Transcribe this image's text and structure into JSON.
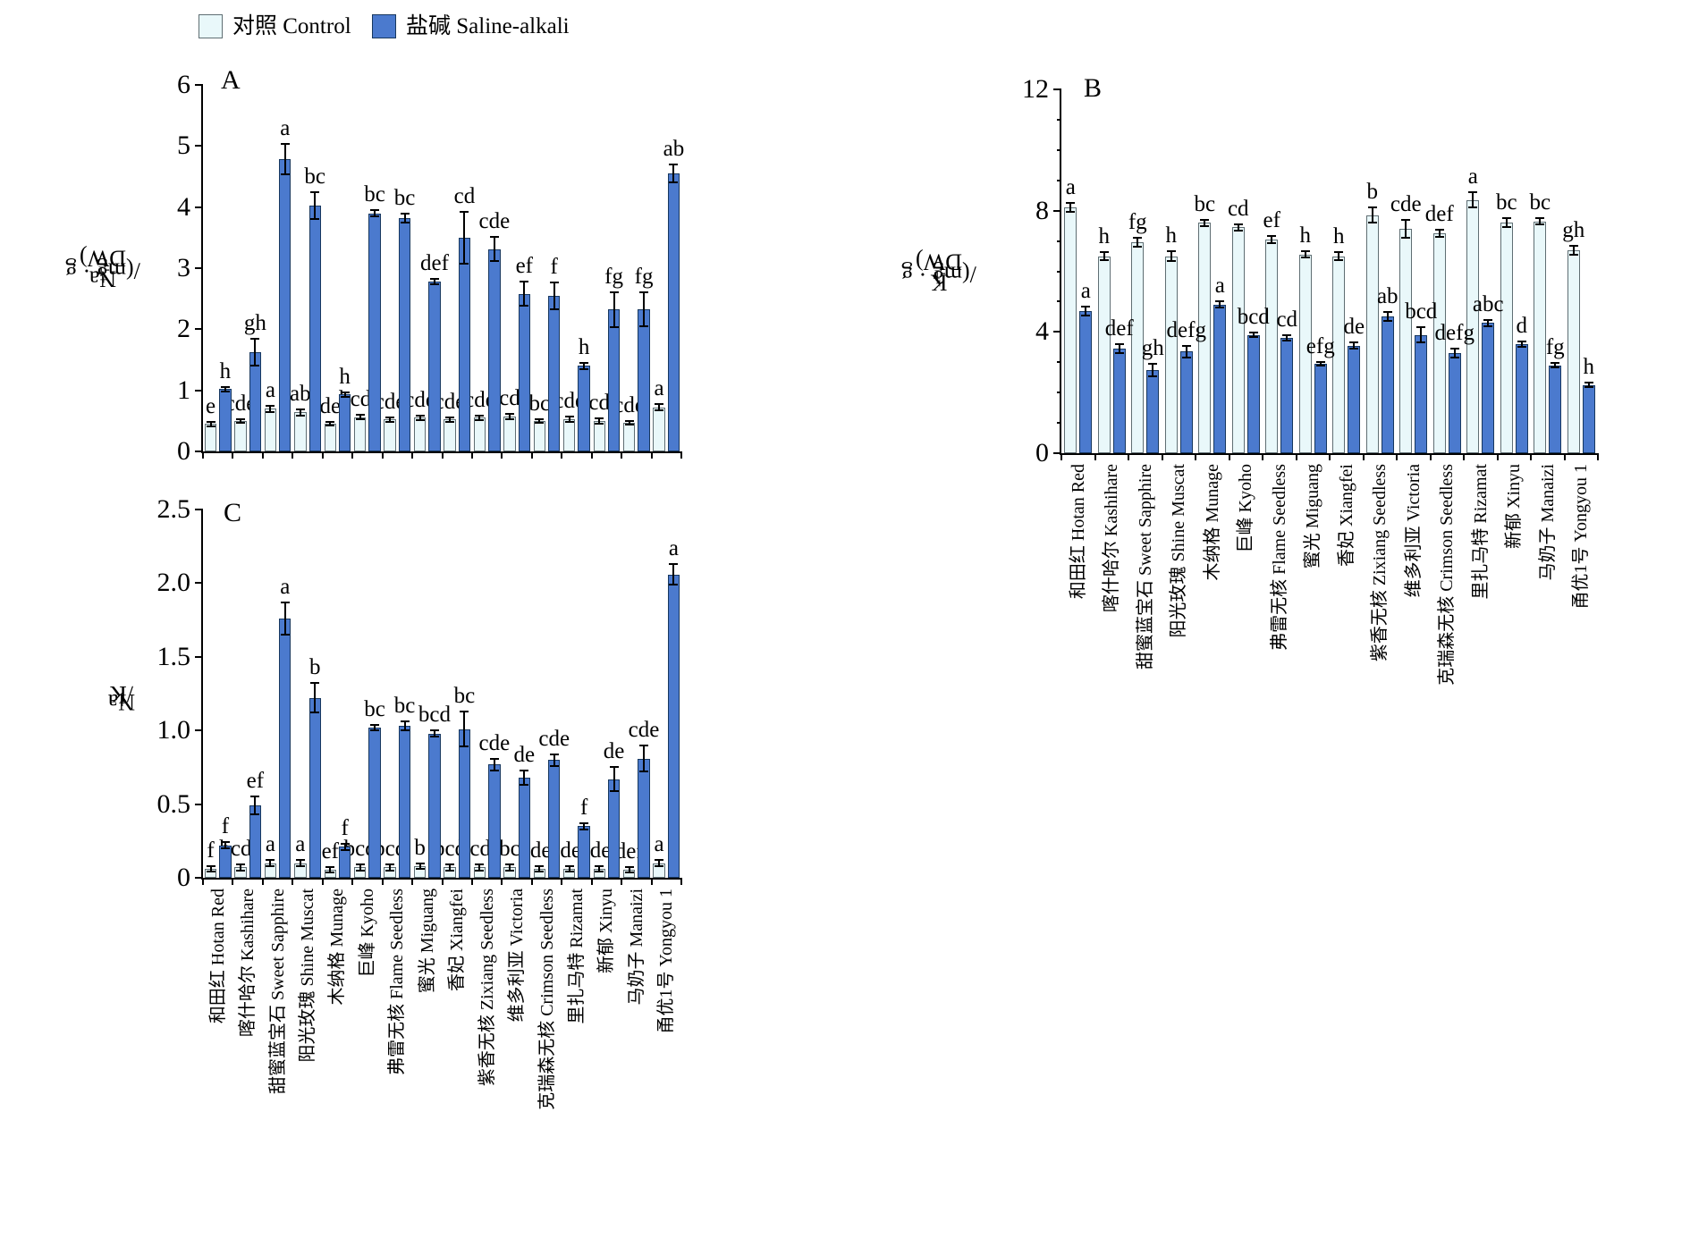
{
  "legend": {
    "control_label": "对照 Control",
    "saline_label": "盐碱 Saline-alkali"
  },
  "colors": {
    "control_fill": "#e9f8fa",
    "control_border": "#5f6e73",
    "saline_fill": "#4b7ace",
    "saline_border": "#17375e",
    "axis": "#000000"
  },
  "categories": [
    "和田红 Hotan Red",
    "喀什哈尔 Kashihare",
    "甜蜜蓝宝石 Sweet Sapphire",
    "阳光玫瑰 Shine Muscat",
    "木纳格 Munage",
    "巨峰 Kyoho",
    "弗雷无核 Flame Seedless",
    "蜜光 Miguang",
    "香妃 Xiangfei",
    "紫香无核 Zixiang Seedless",
    "维多利亚 Victoria",
    "克瑞森无核 Crimson Seedless",
    "里扎马特 Rizamat",
    "新郁 Xinyu",
    "马奶子 Manaizi",
    "甬优1号 Yongyou 1"
  ],
  "chart_data": [
    {
      "id": "A",
      "type": "bar",
      "panel_letter": "A",
      "ylabel_parts": [
        [
          "t",
          "Na"
        ],
        [
          "sup",
          "+"
        ],
        [
          "t",
          "/(mg · g"
        ],
        [
          "sup",
          "-1"
        ],
        [
          "t",
          " DW)"
        ]
      ],
      "ylim": [
        0,
        6
      ],
      "yticks": [
        0,
        1,
        2,
        3,
        4,
        5,
        6
      ],
      "ytick_labels": [
        "0",
        "1",
        "2",
        "3",
        "4",
        "5",
        "6"
      ],
      "minor_step": null,
      "show_xlabels": false,
      "legend_position": "top-left-above-figure",
      "grid": false,
      "series": [
        {
          "name": "control",
          "values": [
            0.45,
            0.5,
            0.7,
            0.64,
            0.45,
            0.56,
            0.52,
            0.55,
            0.52,
            0.55,
            0.57,
            0.5,
            0.53,
            0.5,
            0.47,
            0.72
          ],
          "errors": [
            0.04,
            0.03,
            0.05,
            0.05,
            0.03,
            0.04,
            0.04,
            0.04,
            0.04,
            0.04,
            0.05,
            0.03,
            0.04,
            0.04,
            0.03,
            0.05
          ],
          "letters": [
            "e",
            "cde",
            "a",
            "ab",
            "de",
            "bcde",
            "cde",
            "cde",
            "cde",
            "cde",
            "cd",
            "bc",
            "cde",
            "cd",
            "cde",
            "a"
          ]
        },
        {
          "name": "saline",
          "values": [
            1.02,
            1.63,
            4.78,
            4.02,
            0.93,
            3.9,
            3.82,
            2.78,
            3.5,
            3.31,
            2.58,
            2.54,
            1.4,
            2.32,
            2.33,
            4.55
          ],
          "errors": [
            0.04,
            0.22,
            0.25,
            0.22,
            0.04,
            0.05,
            0.07,
            0.05,
            0.42,
            0.2,
            0.2,
            0.22,
            0.05,
            0.28,
            0.28,
            0.15
          ],
          "letters": [
            "h",
            "gh",
            "a",
            "bc",
            "h",
            "bc",
            "bc",
            "def",
            "cd",
            "cde",
            "ef",
            "f",
            "h",
            "fg",
            "fg",
            "ab"
          ]
        }
      ]
    },
    {
      "id": "B",
      "type": "bar",
      "panel_letter": "B",
      "ylabel_parts": [
        [
          "t",
          "K"
        ],
        [
          "sup",
          "+"
        ],
        [
          "t",
          "/(mg · g"
        ],
        [
          "sup",
          "-1"
        ],
        [
          "t",
          " DW)"
        ]
      ],
      "ylim": [
        0,
        12
      ],
      "yticks": [
        0,
        4,
        8,
        12
      ],
      "ytick_labels": [
        "0",
        "4",
        "8",
        "12"
      ],
      "minor_step": 1,
      "show_xlabels": true,
      "grid": false,
      "series": [
        {
          "name": "control",
          "values": [
            8.1,
            6.5,
            6.95,
            6.5,
            7.6,
            7.45,
            7.05,
            6.55,
            6.5,
            7.85,
            7.4,
            7.25,
            8.35,
            7.6,
            7.65,
            6.7
          ],
          "errors": [
            0.15,
            0.12,
            0.15,
            0.15,
            0.1,
            0.1,
            0.12,
            0.1,
            0.12,
            0.25,
            0.3,
            0.12,
            0.25,
            0.15,
            0.1,
            0.15
          ],
          "letters": [
            "a",
            "h",
            "fg",
            "h",
            "bc",
            "cd",
            "ef",
            "h",
            "h",
            "b",
            "cde",
            "def",
            "a",
            "bc",
            "bc",
            "gh"
          ]
        },
        {
          "name": "saline",
          "values": [
            4.7,
            3.45,
            2.75,
            3.35,
            4.9,
            3.9,
            3.8,
            2.95,
            3.55,
            4.5,
            3.9,
            3.3,
            4.3,
            3.6,
            2.9,
            2.25
          ],
          "errors": [
            0.15,
            0.15,
            0.2,
            0.2,
            0.1,
            0.08,
            0.08,
            0.06,
            0.1,
            0.15,
            0.25,
            0.15,
            0.1,
            0.1,
            0.08,
            0.08
          ],
          "letters": [
            "a",
            "def",
            "gh",
            "defg",
            "a",
            "bcd",
            "cd",
            "efg",
            "de",
            "ab",
            "bcd",
            "defg",
            "abc",
            "d",
            "fg",
            "h"
          ]
        }
      ]
    },
    {
      "id": "C",
      "type": "bar",
      "panel_letter": "C",
      "ylabel_parts": [
        [
          "t",
          "Na"
        ],
        [
          "sup",
          "+"
        ],
        [
          "t",
          "/K"
        ],
        [
          "sup",
          "+"
        ]
      ],
      "ylim": [
        0,
        2.5
      ],
      "yticks": [
        0,
        0.5,
        1.0,
        1.5,
        2.0,
        2.5
      ],
      "ytick_labels": [
        "0",
        "0.5",
        "1.0",
        "1.5",
        "2.0",
        "2.5"
      ],
      "minor_step": null,
      "show_xlabels": true,
      "grid": false,
      "series": [
        {
          "name": "control",
          "values": [
            0.06,
            0.07,
            0.1,
            0.1,
            0.055,
            0.07,
            0.07,
            0.08,
            0.07,
            0.07,
            0.07,
            0.06,
            0.06,
            0.06,
            0.055,
            0.1
          ],
          "errors": [
            0.02,
            0.02,
            0.02,
            0.02,
            0.02,
            0.02,
            0.02,
            0.02,
            0.02,
            0.02,
            0.02,
            0.02,
            0.02,
            0.02,
            0.02,
            0.02
          ],
          "letters": [
            "f",
            "bcde",
            "a",
            "a",
            "ef",
            "bcd",
            "bcd",
            "b",
            "bcd",
            "bcde",
            "bc",
            "cdef",
            "cdef",
            "cdef",
            "def",
            "a"
          ]
        },
        {
          "name": "saline",
          "values": [
            0.22,
            0.49,
            1.76,
            1.22,
            0.21,
            1.02,
            1.03,
            0.98,
            1.01,
            0.77,
            0.68,
            0.8,
            0.35,
            0.67,
            0.81,
            2.06
          ],
          "errors": [
            0.02,
            0.06,
            0.11,
            0.1,
            0.02,
            0.02,
            0.03,
            0.02,
            0.12,
            0.04,
            0.05,
            0.04,
            0.02,
            0.08,
            0.09,
            0.07
          ],
          "letters": [
            "f",
            "ef",
            "a",
            "b",
            "f",
            "bc",
            "bc",
            "bcd",
            "bc",
            "cde",
            "de",
            "cde",
            "f",
            "de",
            "cde",
            "a"
          ]
        }
      ]
    }
  ]
}
